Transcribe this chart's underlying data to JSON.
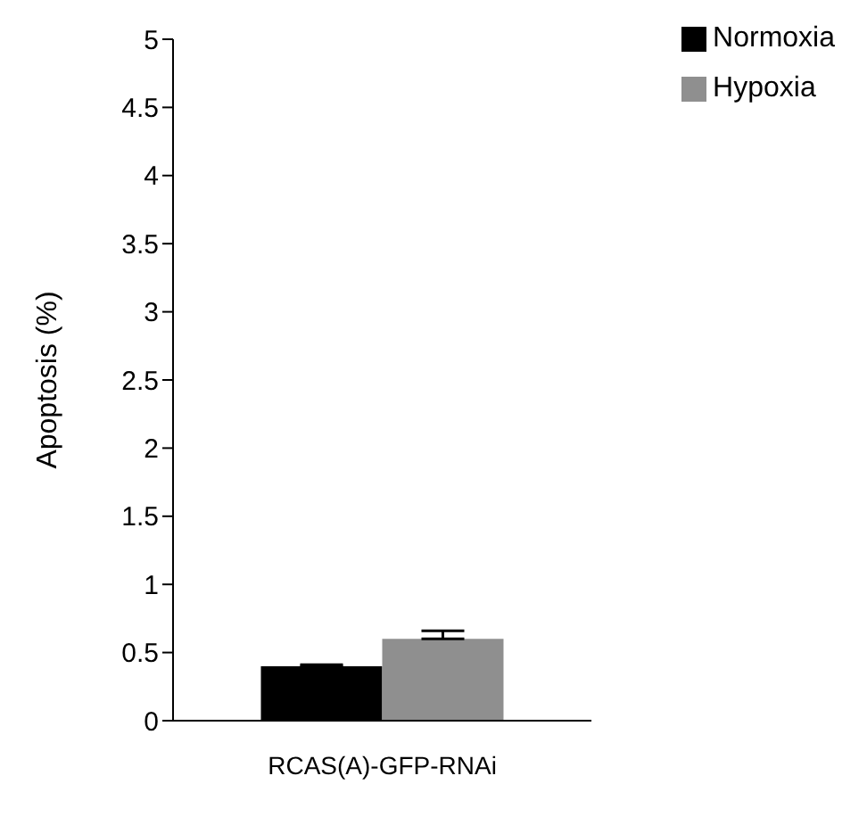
{
  "chart_data": {
    "type": "bar",
    "ylabel": "Apoptosis (%)",
    "categories": [
      "RCAS(A)-GFP-RNAi"
    ],
    "series": [
      {
        "name": "Normoxia",
        "color": "#000000",
        "values": [
          0.4
        ],
        "errors": [
          [
            0.4,
            0.41
          ]
        ]
      },
      {
        "name": "Hypoxia",
        "color": "#8f8f8f",
        "values": [
          0.6
        ],
        "errors": [
          [
            0.6,
            0.66
          ]
        ]
      }
    ],
    "ylim": [
      0,
      5
    ],
    "yticks": [
      0,
      0.5,
      1,
      1.5,
      2,
      2.5,
      3,
      3.5,
      4,
      4.5,
      5
    ],
    "grid": false,
    "legend": "top right"
  }
}
